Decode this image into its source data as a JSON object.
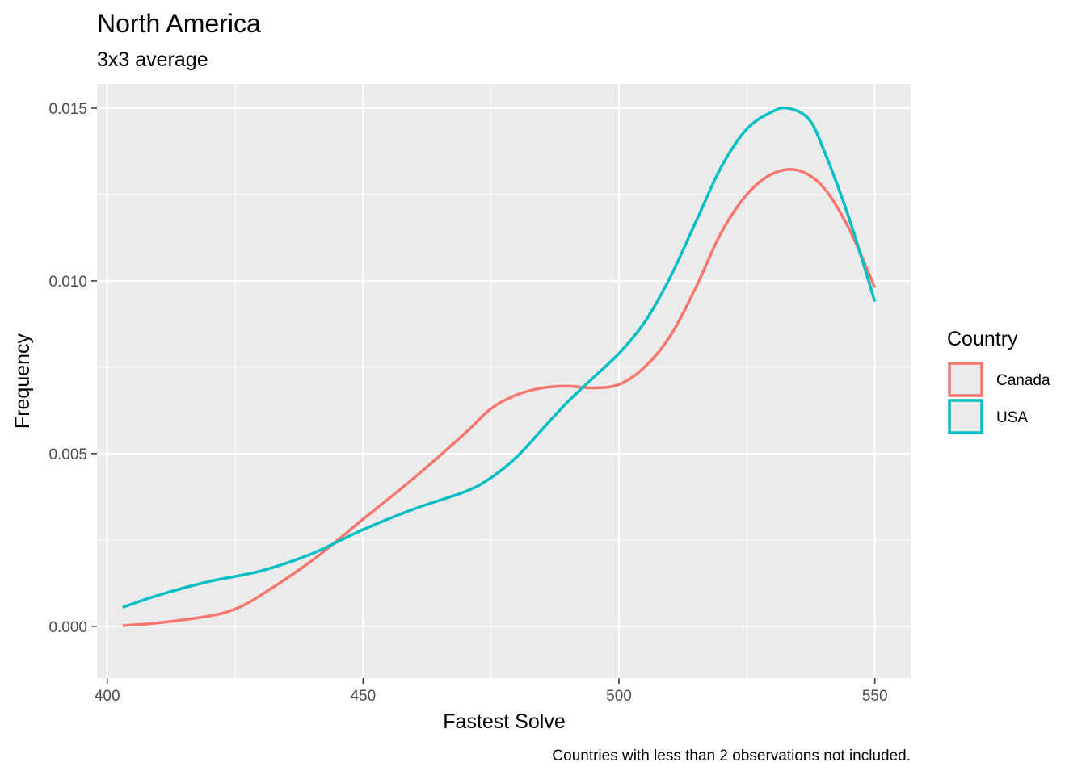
{
  "chart_data": {
    "type": "line",
    "title": "North America",
    "subtitle": "3x3 average",
    "xlabel": "Fastest Solve",
    "ylabel": "Frequency",
    "caption": "Countries with less than 2 observations not included.",
    "xlim": [
      398,
      557
    ],
    "ylim": [
      -0.0015,
      0.0157
    ],
    "x_ticks": [
      400,
      450,
      500,
      550
    ],
    "x_tick_labels": [
      "400",
      "450",
      "500",
      "550"
    ],
    "y_ticks": [
      0.0,
      0.005,
      0.01,
      0.015
    ],
    "y_tick_labels": [
      "0.000",
      "0.005",
      "0.010",
      "0.015"
    ],
    "grid": true,
    "legend": {
      "title": "Country",
      "position": "right"
    },
    "series": [
      {
        "name": "Canada",
        "color": "#F8766D",
        "x": [
          403,
          410,
          420,
          425,
          430,
          440,
          450,
          460,
          470,
          475,
          480,
          485,
          490,
          495,
          500,
          505,
          510,
          515,
          520,
          525,
          530,
          535,
          540,
          545,
          550
        ],
        "y": [
          2e-05,
          0.0001,
          0.0003,
          0.0005,
          0.0009,
          0.0019,
          0.0031,
          0.0043,
          0.0056,
          0.0063,
          0.0067,
          0.0069,
          0.00695,
          0.0069,
          0.007,
          0.0075,
          0.0084,
          0.0098,
          0.0114,
          0.0125,
          0.0131,
          0.0132,
          0.0127,
          0.0115,
          0.0098
        ]
      },
      {
        "name": "USA",
        "color": "#00BFC4",
        "x": [
          403,
          410,
          420,
          430,
          440,
          450,
          460,
          470,
          475,
          480,
          485,
          490,
          495,
          500,
          505,
          510,
          515,
          520,
          525,
          530,
          533,
          537,
          540,
          545,
          550
        ],
        "y": [
          0.00055,
          0.0009,
          0.0013,
          0.0016,
          0.0021,
          0.0028,
          0.0034,
          0.0039,
          0.0043,
          0.0049,
          0.0057,
          0.0065,
          0.0072,
          0.0079,
          0.0088,
          0.0101,
          0.0117,
          0.0133,
          0.0144,
          0.0149,
          0.015,
          0.0147,
          0.0138,
          0.0118,
          0.0094
        ]
      }
    ]
  }
}
